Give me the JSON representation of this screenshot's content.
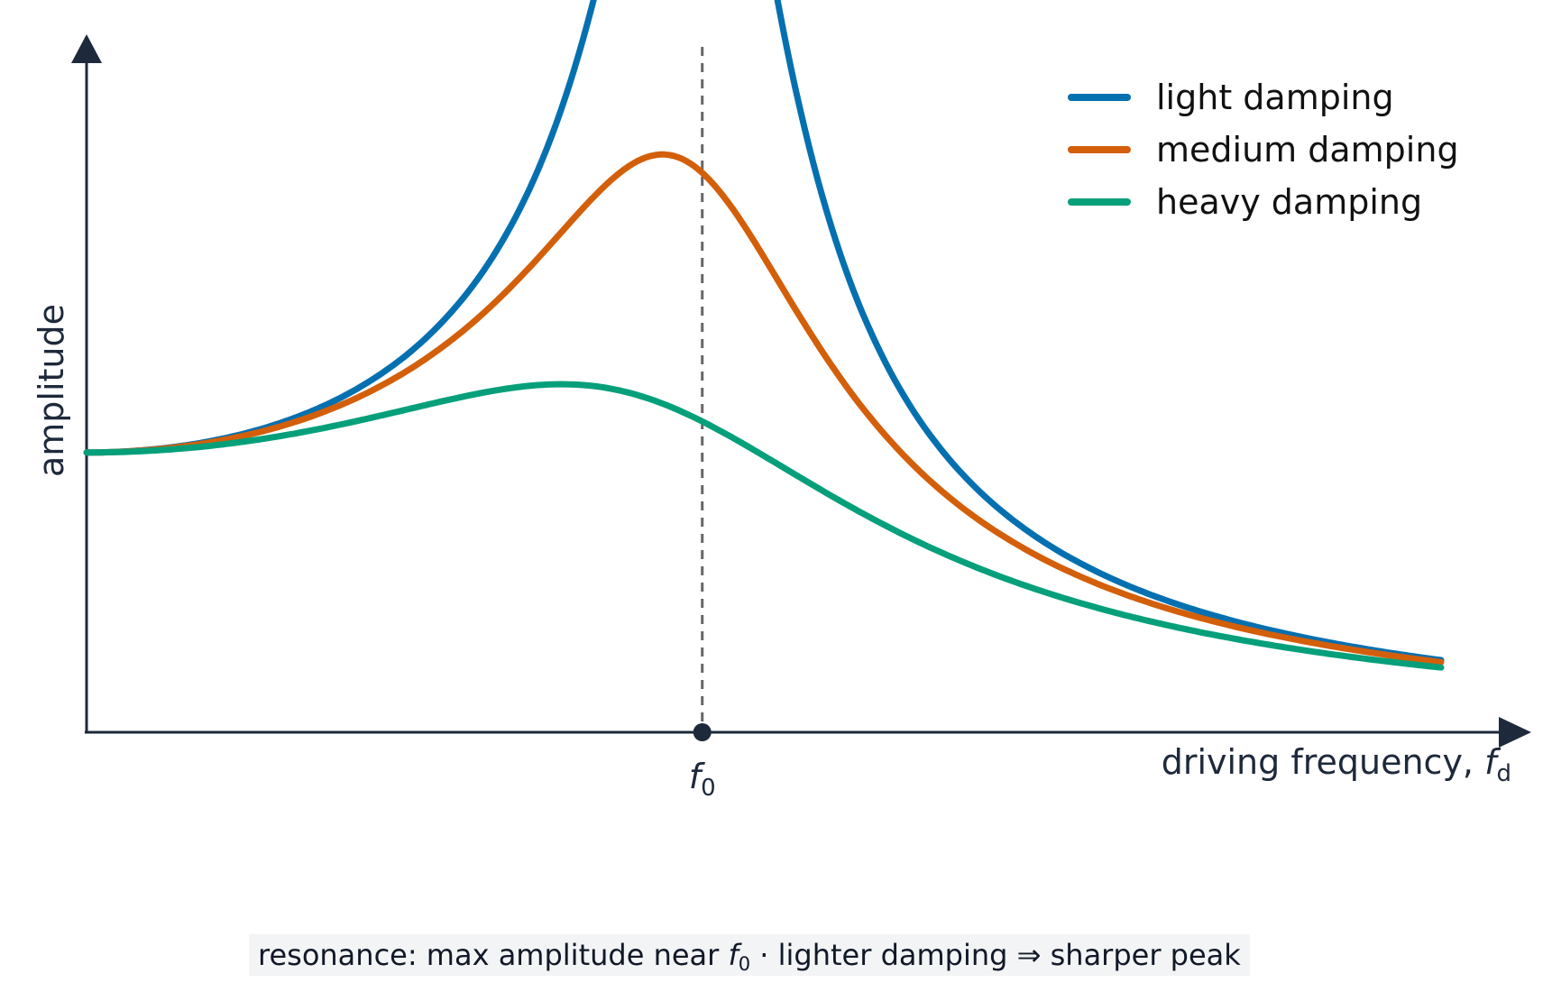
{
  "chart_data": {
    "type": "line",
    "xlabel": "driving frequency, ",
    "xlabel_var": "f",
    "xlabel_sub": "d",
    "ylabel": "amplitude",
    "xlim": [
      0,
      2.2
    ],
    "ylim": [
      0,
      2.45
    ],
    "marker": {
      "x": 1.0,
      "label_var": "f",
      "label_sub": "0"
    },
    "legend_position": "top-right",
    "series": [
      {
        "name": "light damping",
        "color": "#0570b0",
        "damping": 0.25
      },
      {
        "name": "medium damping",
        "color": "#d35f0a",
        "damping": 0.5
      },
      {
        "name": "heavy damping",
        "color": "#05a07a",
        "damping": 0.9
      }
    ],
    "note": "curves drawn from A(x) = 1 / sqrt((1 - x^2)^2 + (d*x)^2), x = f/f0, from 0 to 2.2"
  },
  "caption": {
    "part1": "resonance: max amplitude near ",
    "var": "f",
    "sub": "0",
    "part2": "  ·  lighter damping ⇒ sharper peak"
  }
}
